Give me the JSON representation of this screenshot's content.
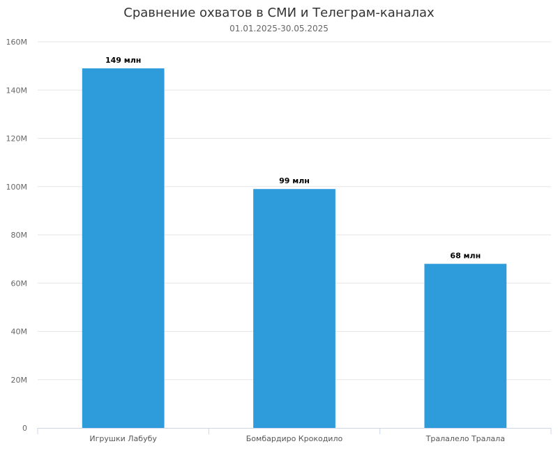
{
  "chart_data": {
    "type": "bar",
    "title": "Сравнение охватов в СМИ и Телеграм-каналах",
    "subtitle": "01.01.2025-30.05.2025",
    "xlabel": "",
    "ylabel": "",
    "categories": [
      "Игрушки Лабубу",
      "Бомбардиро Крокодило",
      "Тралалело Тралала"
    ],
    "values": [
      149000000,
      99000000,
      68000000
    ],
    "data_labels": [
      "149 млн",
      "99 млн",
      "68 млн"
    ],
    "ylim": [
      0,
      160000000
    ],
    "y_ticks": [
      0,
      20000000,
      40000000,
      60000000,
      80000000,
      100000000,
      120000000,
      140000000,
      160000000
    ],
    "y_tick_labels": [
      "0",
      "20M",
      "40M",
      "60M",
      "80M",
      "100M",
      "120M",
      "140M",
      "160M"
    ],
    "grid": true,
    "bar_color": "#2e9bdb",
    "grid_color": "#e6e6e6",
    "axis_color": "#ccd6eb"
  }
}
